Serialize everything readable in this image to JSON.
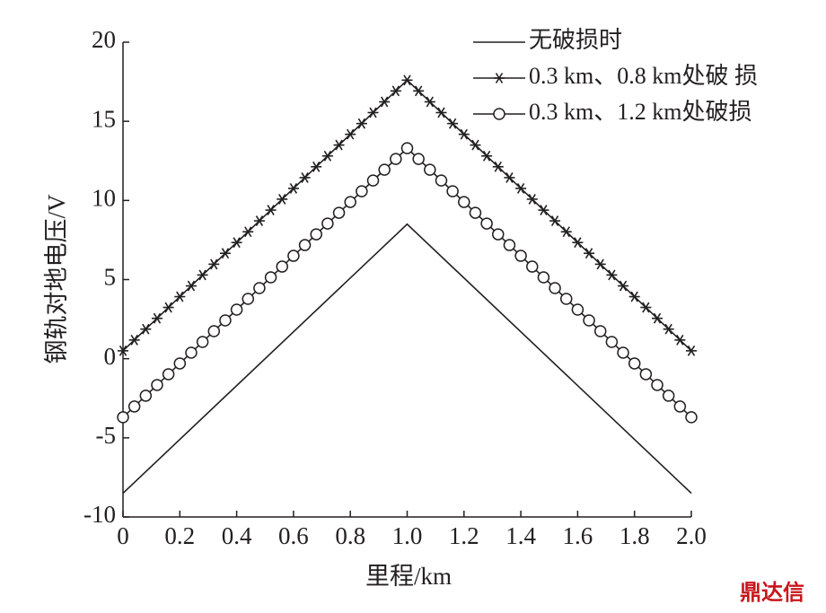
{
  "chart_data": {
    "type": "line",
    "xlabel": "里程/km",
    "ylabel": "钢轨对地电压/V",
    "watermark": "鼎达信",
    "xlim": [
      0,
      2
    ],
    "ylim": [
      -10,
      20
    ],
    "xticks": [
      0,
      0.2,
      0.4,
      0.6,
      0.8,
      {
        "value": 1,
        "label": "1.0"
      },
      1.2,
      1.4,
      1.6,
      1.8,
      {
        "value": 2,
        "label": "2.0"
      }
    ],
    "yticks": [
      -10,
      -5,
      0,
      5,
      10,
      15,
      20
    ],
    "grid": false,
    "legend": "upper right",
    "series": [
      {
        "name": "无破损时",
        "color": "#231f20",
        "marker": "none",
        "x": [
          0,
          1,
          2
        ],
        "values": [
          -8.5,
          8.5,
          -8.5
        ]
      },
      {
        "name": "0.3 km、0.8 km处破 损",
        "color": "#231f20",
        "marker": "star",
        "x": [
          0,
          0.04,
          0.08,
          0.12,
          0.16,
          0.2,
          0.24,
          0.28,
          0.32,
          0.36,
          0.4,
          0.44,
          0.48,
          0.52,
          0.56,
          0.6,
          0.64,
          0.68,
          0.72,
          0.76,
          0.8,
          0.84,
          0.88,
          0.92,
          0.96,
          1,
          1.04,
          1.08,
          1.12,
          1.16,
          1.2,
          1.24,
          1.28,
          1.32,
          1.36,
          1.4,
          1.44,
          1.48,
          1.52,
          1.56,
          1.6,
          1.64,
          1.68,
          1.72,
          1.76,
          1.8,
          1.84,
          1.88,
          1.92,
          1.96,
          2
        ],
        "values": [
          0.5,
          1.18,
          1.87,
          2.55,
          3.24,
          3.92,
          4.6,
          5.29,
          5.97,
          6.66,
          7.34,
          8.02,
          8.71,
          9.39,
          10.08,
          10.76,
          11.44,
          12.13,
          12.81,
          13.5,
          14.18,
          14.86,
          15.55,
          16.23,
          16.92,
          17.6,
          16.92,
          16.23,
          15.55,
          14.86,
          14.18,
          13.5,
          12.81,
          12.13,
          11.44,
          10.76,
          10.08,
          9.39,
          8.71,
          8.02,
          7.34,
          6.66,
          5.97,
          5.29,
          4.6,
          3.92,
          3.24,
          2.55,
          1.87,
          1.18,
          0.5
        ]
      },
      {
        "name": "0.3 km、1.2 km处破损",
        "color": "#231f20",
        "marker": "circle",
        "x": [
          0,
          0.04,
          0.08,
          0.12,
          0.16,
          0.2,
          0.24,
          0.28,
          0.32,
          0.36,
          0.4,
          0.44,
          0.48,
          0.52,
          0.56,
          0.6,
          0.64,
          0.68,
          0.72,
          0.76,
          0.8,
          0.84,
          0.88,
          0.92,
          0.96,
          1,
          1.04,
          1.08,
          1.12,
          1.16,
          1.2,
          1.24,
          1.28,
          1.32,
          1.36,
          1.4,
          1.44,
          1.48,
          1.52,
          1.56,
          1.6,
          1.64,
          1.68,
          1.72,
          1.76,
          1.8,
          1.84,
          1.88,
          1.92,
          1.96,
          2
        ],
        "values": [
          -3.7,
          -3.02,
          -2.34,
          -1.66,
          -0.98,
          -0.3,
          0.38,
          1.06,
          1.74,
          2.42,
          3.1,
          3.78,
          4.46,
          5.14,
          5.82,
          6.5,
          7.18,
          7.86,
          8.54,
          9.22,
          9.9,
          10.58,
          11.26,
          11.94,
          12.62,
          13.3,
          12.62,
          11.94,
          11.26,
          10.58,
          9.9,
          9.22,
          8.54,
          7.86,
          7.18,
          6.5,
          5.82,
          5.14,
          4.46,
          3.78,
          3.1,
          2.42,
          1.74,
          1.06,
          0.38,
          -0.3,
          -0.98,
          -1.66,
          -2.34,
          -3.02,
          -3.7
        ]
      }
    ]
  }
}
